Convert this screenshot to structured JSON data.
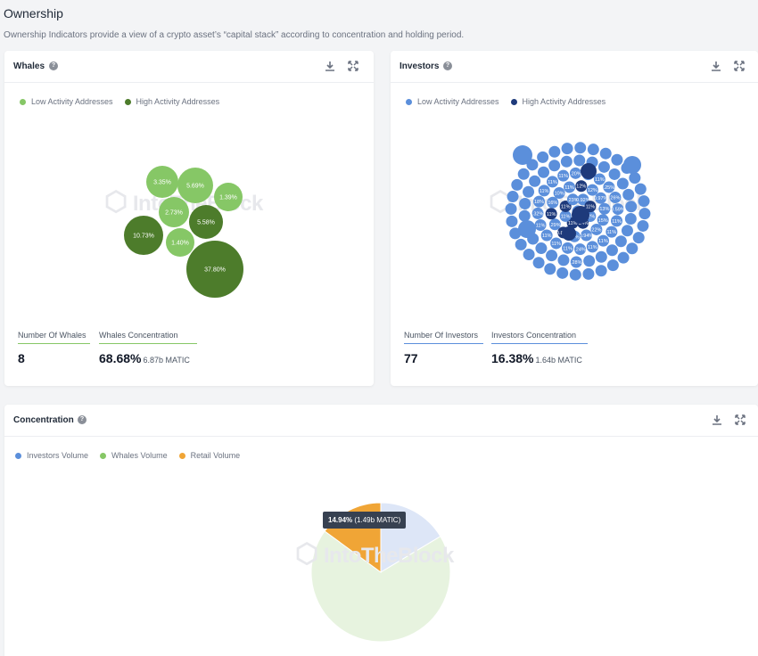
{
  "page": {
    "title": "Ownership",
    "subtitle": "Ownership Indicators provide a view of a crypto asset’s “capital stack” according to concentration and holding period."
  },
  "watermark": "IntoTheBlock",
  "whales": {
    "title": "Whales",
    "legend": [
      "Low Activity Addresses",
      "High Activity Addresses"
    ],
    "colors": {
      "low": "#86c766",
      "high": "#4d7c2b"
    },
    "stat1_label": "Number Of Whales",
    "stat1_value": "8",
    "stat2_label": "Whales Concentration",
    "stat2_value": "68.68%",
    "stat2_sub": "6.87b MATIC",
    "bubbles": [
      {
        "label": "3.35%",
        "activity": "low",
        "value": 3.35
      },
      {
        "label": "5.69%",
        "activity": "low",
        "value": 5.69
      },
      {
        "label": "1.39%",
        "activity": "low",
        "value": 1.39
      },
      {
        "label": "2.73%",
        "activity": "low",
        "value": 2.73
      },
      {
        "label": "5.58%",
        "activity": "high",
        "value": 5.58
      },
      {
        "label": "10.73%",
        "activity": "high",
        "value": 10.73
      },
      {
        "label": "1.40%",
        "activity": "low",
        "value": 1.4
      },
      {
        "label": "37.80%",
        "activity": "high",
        "value": 37.8
      }
    ]
  },
  "investors": {
    "title": "Investors",
    "legend": [
      "Low Activity Addresses",
      "High Activity Addresses"
    ],
    "colors": {
      "low": "#5b8fdb",
      "high": "#1e3a7b"
    },
    "stat1_label": "Number Of Investors",
    "stat1_value": "77",
    "stat2_label": "Investors Concentration",
    "stat2_value": "16.38%",
    "stat2_sub": "1.64b MATIC",
    "bubble_labels": [
      "11%",
      "12%",
      ".34%",
      "11%",
      "11%",
      "11%",
      ".23%",
      "0.92%",
      "11%",
      "22%",
      "0.94%",
      "19%",
      "0.80%",
      ".29%",
      "11%",
      "16%",
      "10%",
      "11%",
      "12%",
      "12%",
      "0.97%",
      "13%",
      "15%",
      "11%",
      ".24%",
      "11%",
      "11%",
      "11%",
      "11%",
      ".32%",
      "18%",
      "11%",
      "11%",
      "11%",
      ".20%",
      "11%",
      "11%",
      ".25%",
      "26%",
      "0.59%",
      "11%",
      "11%",
      "11%",
      ".28%"
    ]
  },
  "concentration": {
    "title": "Concentration",
    "legend": [
      "Investors Volume",
      "Whales Volume",
      "Retail Volume"
    ],
    "colors": {
      "investors": "#5b8fdb",
      "whales": "#86c766",
      "retail": "#f0a536"
    },
    "tooltip_value": "14.94%",
    "tooltip_sub": "(1.49b MATIC)",
    "chart_data": {
      "type": "pie",
      "series": [
        {
          "name": "Investors Volume",
          "value": 16.38
        },
        {
          "name": "Whales Volume",
          "value": 68.68
        },
        {
          "name": "Retail Volume",
          "value": 14.94
        }
      ]
    }
  }
}
